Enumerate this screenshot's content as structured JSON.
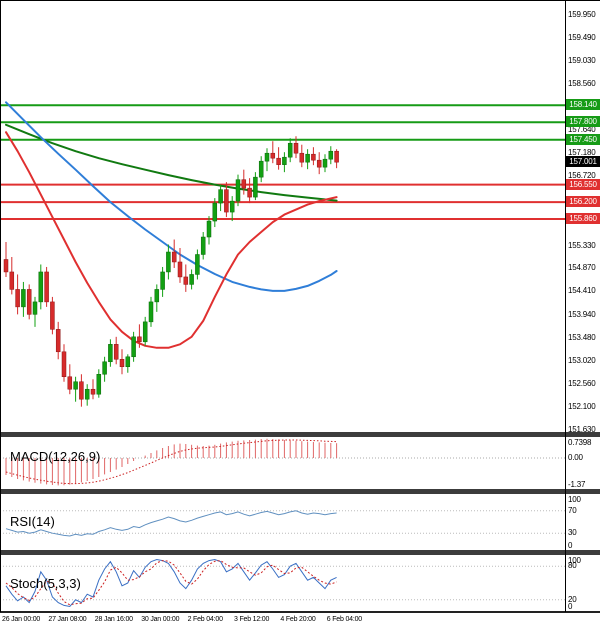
{
  "panels": {
    "macd": {
      "label": "MACD(12,26,9)",
      "axis": [
        {
          "v": 0.7398,
          "label": "0.7398"
        },
        {
          "v": 0,
          "label": "0.00"
        },
        {
          "v": -1.37,
          "label": "-1.37"
        }
      ]
    },
    "rsi": {
      "label": "RSI(14)",
      "axis": [
        {
          "v": 100,
          "label": "100"
        },
        {
          "v": 70,
          "label": "70"
        },
        {
          "v": 30,
          "label": "30"
        },
        {
          "v": 0,
          "label": "0"
        }
      ]
    },
    "stoch": {
      "label": "Stoch(5,3,3)",
      "axis": [
        {
          "v": 100,
          "label": "100"
        },
        {
          "v": 80,
          "label": "80"
        },
        {
          "v": 20,
          "label": "20"
        },
        {
          "v": 0,
          "label": "0"
        }
      ]
    }
  },
  "price_axis": {
    "ticks": [
      {
        "value": 159.95,
        "label": "159.950"
      },
      {
        "value": 159.49,
        "label": "159.490"
      },
      {
        "value": 159.03,
        "label": "159.030"
      },
      {
        "value": 158.56,
        "label": "158.560"
      },
      {
        "value": 157.64,
        "label": "157.640"
      },
      {
        "value": 157.18,
        "label": "157.180"
      },
      {
        "value": 156.72,
        "label": "156.720"
      },
      {
        "value": 155.33,
        "label": "155.330"
      },
      {
        "value": 154.87,
        "label": "154.870"
      },
      {
        "value": 154.41,
        "label": "154.410"
      },
      {
        "value": 153.94,
        "label": "153.940"
      },
      {
        "value": 153.48,
        "label": "153.480"
      },
      {
        "value": 153.02,
        "label": "153.020"
      },
      {
        "value": 152.56,
        "label": "152.560"
      },
      {
        "value": 152.1,
        "label": "152.100"
      },
      {
        "value": 151.63,
        "label": "151.630"
      }
    ],
    "level_badges": [
      {
        "value": 158.14,
        "label": "158.140",
        "color": "#169b16",
        "kind": "resistance"
      },
      {
        "value": 157.8,
        "label": "157.800",
        "color": "#169b16",
        "kind": "resistance"
      },
      {
        "value": 157.45,
        "label": "157.450",
        "color": "#169b16",
        "kind": "resistance"
      },
      {
        "value": 157.001,
        "label": "157.001",
        "color": "#000000",
        "kind": "current-price"
      },
      {
        "value": 156.55,
        "label": "156.550",
        "color": "#e03030",
        "kind": "support"
      },
      {
        "value": 156.2,
        "label": "156.200",
        "color": "#e03030",
        "kind": "support"
      },
      {
        "value": 155.86,
        "label": "155.860",
        "color": "#e03030",
        "kind": "support"
      }
    ]
  },
  "x_axis": {
    "labels": [
      {
        "idx": 0,
        "label": "26 Jan 00:00"
      },
      {
        "idx": 8,
        "label": "27 Jan 08:00"
      },
      {
        "idx": 16,
        "label": "28 Jan 16:00"
      },
      {
        "idx": 24,
        "label": "30 Jan 00:00"
      },
      {
        "idx": 32,
        "label": "2 Feb 04:00"
      },
      {
        "idx": 40,
        "label": "3 Feb 12:00"
      },
      {
        "idx": 48,
        "label": "4 Feb 20:00"
      },
      {
        "idx": 56,
        "label": "6 Feb 04:00"
      }
    ]
  },
  "chart_data": {
    "type": "candlestick",
    "price_range": [
      151.5,
      160.25
    ],
    "up_color": "#12a012",
    "down_color": "#d62b2b",
    "candles": [
      [
        155.05,
        155.4,
        154.7,
        154.8
      ],
      [
        154.8,
        155.1,
        154.35,
        154.45
      ],
      [
        154.45,
        154.75,
        153.95,
        154.1
      ],
      [
        154.1,
        154.6,
        153.9,
        154.45
      ],
      [
        154.45,
        154.55,
        153.85,
        153.95
      ],
      [
        153.95,
        154.3,
        153.7,
        154.2
      ],
      [
        154.2,
        154.95,
        154.05,
        154.8
      ],
      [
        154.8,
        154.9,
        154.1,
        154.2
      ],
      [
        154.2,
        154.3,
        153.55,
        153.65
      ],
      [
        153.65,
        153.8,
        153.05,
        153.2
      ],
      [
        153.2,
        153.35,
        152.6,
        152.7
      ],
      [
        152.7,
        152.95,
        152.35,
        152.45
      ],
      [
        152.45,
        152.7,
        152.2,
        152.6
      ],
      [
        152.6,
        152.75,
        152.1,
        152.25
      ],
      [
        152.25,
        152.55,
        152.12,
        152.45
      ],
      [
        152.45,
        152.65,
        152.25,
        152.35
      ],
      [
        152.35,
        152.85,
        152.28,
        152.75
      ],
      [
        152.75,
        153.1,
        152.6,
        153.0
      ],
      [
        153.0,
        153.45,
        152.9,
        153.35
      ],
      [
        153.35,
        153.5,
        152.95,
        153.05
      ],
      [
        153.05,
        153.25,
        152.75,
        152.9
      ],
      [
        152.9,
        153.15,
        152.78,
        153.1
      ],
      [
        153.1,
        153.6,
        153.0,
        153.5
      ],
      [
        153.5,
        153.75,
        153.28,
        153.4
      ],
      [
        153.4,
        153.9,
        153.32,
        153.8
      ],
      [
        153.8,
        154.3,
        153.7,
        154.2
      ],
      [
        154.2,
        154.55,
        154.0,
        154.45
      ],
      [
        154.45,
        154.9,
        154.3,
        154.8
      ],
      [
        154.8,
        155.35,
        154.65,
        155.2
      ],
      [
        155.2,
        155.45,
        154.88,
        155.0
      ],
      [
        155.0,
        155.28,
        154.58,
        154.7
      ],
      [
        154.7,
        154.95,
        154.4,
        154.55
      ],
      [
        154.55,
        154.85,
        154.45,
        154.75
      ],
      [
        154.75,
        155.25,
        154.65,
        155.15
      ],
      [
        155.15,
        155.6,
        155.05,
        155.5
      ],
      [
        155.5,
        155.92,
        155.35,
        155.82
      ],
      [
        155.82,
        156.28,
        155.7,
        156.18
      ],
      [
        156.18,
        156.55,
        156.02,
        156.45
      ],
      [
        156.45,
        156.6,
        155.9,
        156.0
      ],
      [
        156.0,
        156.32,
        155.82,
        156.22
      ],
      [
        156.22,
        156.75,
        156.12,
        156.65
      ],
      [
        156.65,
        156.85,
        156.35,
        156.48
      ],
      [
        156.48,
        156.68,
        156.18,
        156.3
      ],
      [
        156.3,
        156.8,
        156.24,
        156.7
      ],
      [
        156.7,
        157.12,
        156.6,
        157.02
      ],
      [
        157.02,
        157.28,
        156.82,
        157.18
      ],
      [
        157.18,
        157.42,
        156.98,
        157.08
      ],
      [
        157.08,
        157.3,
        156.85,
        156.95
      ],
      [
        156.95,
        157.2,
        156.8,
        157.1
      ],
      [
        157.1,
        157.48,
        157.0,
        157.38
      ],
      [
        157.38,
        157.52,
        157.08,
        157.18
      ],
      [
        157.18,
        157.35,
        156.9,
        157.0
      ],
      [
        157.0,
        157.26,
        156.86,
        157.16
      ],
      [
        157.16,
        157.3,
        156.94,
        157.04
      ],
      [
        157.04,
        157.2,
        156.76,
        156.9
      ],
      [
        156.9,
        157.16,
        156.8,
        157.06
      ],
      [
        157.06,
        157.32,
        156.96,
        157.22
      ],
      [
        157.22,
        157.26,
        156.88,
        157.0
      ]
    ],
    "ma_lines": [
      {
        "name": "ma-green-slow",
        "color": "#117a11",
        "width": 2,
        "points": [
          [
            0,
            157.75
          ],
          [
            4,
            157.56
          ],
          [
            8,
            157.38
          ],
          [
            12,
            157.22
          ],
          [
            16,
            157.08
          ],
          [
            20,
            156.96
          ],
          [
            24,
            156.85
          ],
          [
            28,
            156.74
          ],
          [
            32,
            156.64
          ],
          [
            36,
            156.55
          ],
          [
            40,
            156.47
          ],
          [
            44,
            156.4
          ],
          [
            48,
            156.34
          ],
          [
            52,
            156.29
          ],
          [
            57,
            156.23
          ]
        ]
      },
      {
        "name": "ma-blue-mid",
        "color": "#2f7ed8",
        "width": 2,
        "points": [
          [
            0,
            158.2
          ],
          [
            3,
            157.85
          ],
          [
            6,
            157.5
          ],
          [
            9,
            157.17
          ],
          [
            12,
            156.85
          ],
          [
            15,
            156.52
          ],
          [
            18,
            156.2
          ],
          [
            21,
            155.92
          ],
          [
            24,
            155.65
          ],
          [
            27,
            155.4
          ],
          [
            30,
            155.15
          ],
          [
            33,
            154.94
          ],
          [
            36,
            154.76
          ],
          [
            39,
            154.6
          ],
          [
            42,
            154.5
          ],
          [
            44,
            154.45
          ],
          [
            46,
            154.42
          ],
          [
            48,
            154.42
          ],
          [
            50,
            154.46
          ],
          [
            52,
            154.52
          ],
          [
            54,
            154.62
          ],
          [
            56,
            154.74
          ],
          [
            57,
            154.82
          ]
        ]
      },
      {
        "name": "ma-red-fast",
        "color": "#e03030",
        "width": 2,
        "points": [
          [
            0,
            157.6
          ],
          [
            2,
            157.22
          ],
          [
            4,
            156.8
          ],
          [
            6,
            156.35
          ],
          [
            8,
            155.9
          ],
          [
            10,
            155.45
          ],
          [
            12,
            155.0
          ],
          [
            14,
            154.58
          ],
          [
            16,
            154.2
          ],
          [
            18,
            153.85
          ],
          [
            20,
            153.6
          ],
          [
            22,
            153.42
          ],
          [
            24,
            153.32
          ],
          [
            26,
            153.28
          ],
          [
            28,
            153.28
          ],
          [
            30,
            153.35
          ],
          [
            32,
            153.5
          ],
          [
            34,
            153.82
          ],
          [
            36,
            154.3
          ],
          [
            38,
            154.75
          ],
          [
            40,
            155.15
          ],
          [
            42,
            155.4
          ],
          [
            44,
            155.6
          ],
          [
            46,
            155.8
          ],
          [
            48,
            155.95
          ],
          [
            50,
            156.05
          ],
          [
            52,
            156.15
          ],
          [
            54,
            156.22
          ],
          [
            57,
            156.3
          ]
        ]
      }
    ],
    "levels": {
      "resistance": [
        158.14,
        157.8,
        157.45
      ],
      "support": [
        156.55,
        156.2,
        155.86
      ],
      "current": 157.001,
      "resistance_color": "#169b16",
      "support_color": "#e03030"
    },
    "macd": {
      "range": [
        -1.55,
        1.05
      ],
      "hist_color": "#e06666",
      "signal_color": "#cc2222",
      "hist": [
        -0.85,
        -0.95,
        -1.05,
        -1.12,
        -1.18,
        -1.24,
        -1.28,
        -1.32,
        -1.35,
        -1.37,
        -1.36,
        -1.33,
        -1.28,
        -1.22,
        -1.15,
        -1.05,
        -0.95,
        -0.82,
        -0.7,
        -0.58,
        -0.45,
        -0.3,
        -0.15,
        0.0,
        0.12,
        0.25,
        0.38,
        0.5,
        0.6,
        0.68,
        0.72,
        0.7,
        0.66,
        0.62,
        0.6,
        0.62,
        0.66,
        0.72,
        0.78,
        0.82,
        0.86,
        0.88,
        0.9,
        0.92,
        0.95,
        0.96,
        0.95,
        0.93,
        0.9,
        0.88,
        0.86,
        0.84,
        0.82,
        0.8,
        0.78,
        0.76,
        0.75,
        0.7398
      ],
      "signal": [
        -0.7,
        -0.78,
        -0.86,
        -0.93,
        -1.0,
        -1.06,
        -1.11,
        -1.16,
        -1.2,
        -1.24,
        -1.27,
        -1.28,
        -1.28,
        -1.27,
        -1.25,
        -1.21,
        -1.16,
        -1.09,
        -1.01,
        -0.93,
        -0.83,
        -0.73,
        -0.61,
        -0.49,
        -0.37,
        -0.25,
        -0.12,
        0.0,
        0.12,
        0.23,
        0.33,
        0.4,
        0.45,
        0.49,
        0.51,
        0.53,
        0.55,
        0.58,
        0.62,
        0.66,
        0.7,
        0.74,
        0.77,
        0.8,
        0.83,
        0.86,
        0.88,
        0.89,
        0.9,
        0.9,
        0.9,
        0.89,
        0.88,
        0.87,
        0.86,
        0.84,
        0.83,
        0.82
      ]
    },
    "rsi": {
      "range": [
        0,
        100
      ],
      "guides": [
        70,
        30
      ],
      "color": "#6090c0",
      "values": [
        38,
        35,
        32,
        33,
        30,
        32,
        36,
        33,
        30,
        28,
        26,
        25,
        28,
        26,
        29,
        28,
        33,
        36,
        40,
        37,
        35,
        37,
        42,
        40,
        45,
        49,
        52,
        55,
        59,
        56,
        52,
        50,
        53,
        57,
        60,
        63,
        66,
        68,
        63,
        65,
        68,
        64,
        61,
        64,
        67,
        69,
        66,
        63,
        65,
        68,
        70,
        66,
        64,
        66,
        65,
        63,
        65,
        66
      ]
    },
    "stoch": {
      "range": [
        0,
        100
      ],
      "guides": [
        80,
        20
      ],
      "k_color": "#3a6fc4",
      "d_color": "#cc2222",
      "k": [
        45,
        30,
        18,
        25,
        15,
        35,
        70,
        55,
        25,
        15,
        10,
        8,
        20,
        15,
        30,
        25,
        55,
        75,
        88,
        70,
        45,
        50,
        72,
        60,
        78,
        88,
        92,
        90,
        85,
        70,
        50,
        40,
        55,
        75,
        85,
        90,
        92,
        88,
        70,
        75,
        85,
        70,
        55,
        68,
        82,
        88,
        75,
        60,
        65,
        80,
        85,
        70,
        55,
        60,
        50,
        40,
        55,
        60
      ],
      "d": [
        50,
        42,
        31,
        24,
        19,
        25,
        40,
        53,
        50,
        32,
        17,
        11,
        13,
        14,
        22,
        23,
        37,
        52,
        73,
        78,
        68,
        55,
        56,
        61,
        70,
        75,
        86,
        90,
        89,
        82,
        68,
        53,
        48,
        57,
        72,
        83,
        89,
        90,
        83,
        78,
        77,
        77,
        70,
        64,
        68,
        79,
        82,
        74,
        67,
        68,
        77,
        78,
        70,
        62,
        55,
        50,
        48,
        52
      ]
    }
  }
}
